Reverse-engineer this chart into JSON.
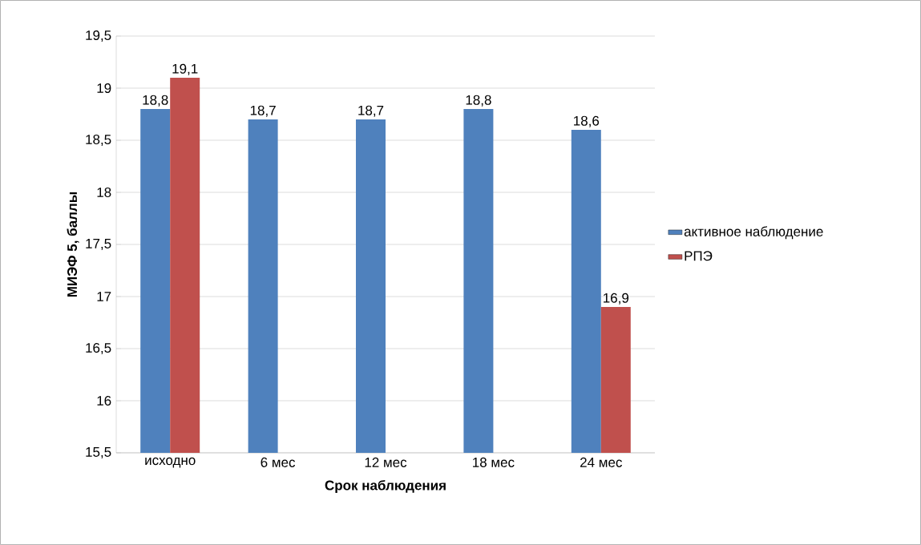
{
  "chart_data": {
    "type": "bar",
    "xlabel": "Срок наблюдения",
    "ylabel": "МИЭФ 5, баллы",
    "categories": [
      "исходно",
      "6 мес",
      "12 мес",
      "18 мес",
      "24 мес"
    ],
    "series": [
      {
        "name": "активное наблюдение",
        "color": "#4f81bd",
        "values": [
          18.8,
          18.7,
          18.7,
          18.8,
          18.6
        ],
        "value_labels": [
          "18,8",
          "18,7",
          "18,7",
          "18,8",
          "18,6"
        ]
      },
      {
        "name": "РПЭ",
        "color": "#c0504d",
        "values": [
          19.1,
          null,
          null,
          null,
          16.9
        ],
        "value_labels": [
          "19,1",
          null,
          null,
          null,
          "16,9"
        ]
      }
    ],
    "ylim": [
      15.5,
      19.5
    ],
    "yticks": [
      {
        "value": 15.5,
        "label": "15,5"
      },
      16,
      {
        "value": 16.5,
        "label": "16,5"
      },
      17,
      {
        "value": 17.5,
        "label": "17,5"
      },
      18,
      {
        "value": 18.5,
        "label": "18,5"
      },
      19,
      {
        "value": 19.5,
        "label": "19,5"
      }
    ],
    "grid": "y",
    "legend": "right"
  }
}
